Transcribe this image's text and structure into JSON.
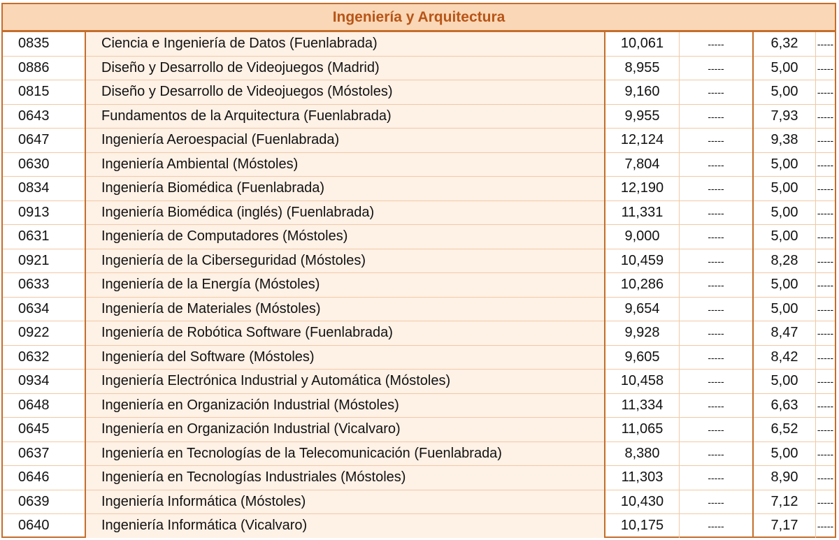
{
  "title": "Ingeniería y Arquitectura",
  "rows": [
    {
      "code": "0835",
      "name": "Ciencia e Ingeniería de Datos (Fuenlabrada)",
      "v1": "10,061",
      "d1": "-----",
      "v2": "6,32",
      "d2": "-----"
    },
    {
      "code": "0886",
      "name": "Diseño y Desarrollo de Videojuegos (Madrid)",
      "v1": "8,955",
      "d1": "-----",
      "v2": "5,00",
      "d2": "-----"
    },
    {
      "code": "0815",
      "name": "Diseño y Desarrollo de Videojuegos (Móstoles)",
      "v1": "9,160",
      "d1": "-----",
      "v2": "5,00",
      "d2": "-----"
    },
    {
      "code": "0643",
      "name": "Fundamentos de la Arquitectura (Fuenlabrada)",
      "v1": "9,955",
      "d1": "-----",
      "v2": "7,93",
      "d2": "-----"
    },
    {
      "code": "0647",
      "name": "Ingeniería Aeroespacial (Fuenlabrada)",
      "v1": "12,124",
      "d1": "-----",
      "v2": "9,38",
      "d2": "-----"
    },
    {
      "code": "0630",
      "name": "Ingeniería Ambiental (Móstoles)",
      "v1": "7,804",
      "d1": "-----",
      "v2": "5,00",
      "d2": "-----"
    },
    {
      "code": "0834",
      "name": "Ingeniería Biomédica (Fuenlabrada)",
      "v1": "12,190",
      "d1": "-----",
      "v2": "5,00",
      "d2": "-----"
    },
    {
      "code": "0913",
      "name": "Ingeniería Biomédica (inglés) (Fuenlabrada)",
      "v1": "11,331",
      "d1": "-----",
      "v2": "5,00",
      "d2": "-----"
    },
    {
      "code": "0631",
      "name": "Ingeniería de Computadores (Móstoles)",
      "v1": "9,000",
      "d1": "-----",
      "v2": "5,00",
      "d2": "-----"
    },
    {
      "code": "0921",
      "name": "Ingeniería de la Ciberseguridad (Móstoles)",
      "v1": "10,459",
      "d1": "-----",
      "v2": "8,28",
      "d2": "-----"
    },
    {
      "code": "0633",
      "name": "Ingeniería de la Energía (Móstoles)",
      "v1": "10,286",
      "d1": "-----",
      "v2": "5,00",
      "d2": "-----"
    },
    {
      "code": "0634",
      "name": "Ingeniería de Materiales (Móstoles)",
      "v1": "9,654",
      "d1": "-----",
      "v2": "5,00",
      "d2": "-----"
    },
    {
      "code": "0922",
      "name": "Ingeniería de Robótica Software (Fuenlabrada)",
      "v1": "9,928",
      "d1": "-----",
      "v2": "8,47",
      "d2": "-----"
    },
    {
      "code": "0632",
      "name": "Ingeniería del Software (Móstoles)",
      "v1": "9,605",
      "d1": "-----",
      "v2": "8,42",
      "d2": "-----"
    },
    {
      "code": "0934",
      "name": "Ingeniería Electrónica Industrial y Automática (Móstoles)",
      "v1": "10,458",
      "d1": "-----",
      "v2": "5,00",
      "d2": "-----"
    },
    {
      "code": "0648",
      "name": "Ingeniería en Organización Industrial (Móstoles)",
      "v1": "11,334",
      "d1": "-----",
      "v2": "6,63",
      "d2": "-----"
    },
    {
      "code": "0645",
      "name": "Ingeniería en Organización Industrial (Vicalvaro)",
      "v1": "11,065",
      "d1": "-----",
      "v2": "6,52",
      "d2": "-----"
    },
    {
      "code": "0637",
      "name": "Ingeniería en Tecnologías de la Telecomunicación (Fuenlabrada)",
      "v1": "8,380",
      "d1": "-----",
      "v2": "5,00",
      "d2": "-----"
    },
    {
      "code": "0646",
      "name": "Ingeniería en Tecnologías Industriales (Móstoles)",
      "v1": "11,303",
      "d1": "-----",
      "v2": "8,90",
      "d2": "-----"
    },
    {
      "code": "0639",
      "name": "Ingeniería Informática (Móstoles)",
      "v1": "10,430",
      "d1": "-----",
      "v2": "7,12",
      "d2": "-----"
    },
    {
      "code": "0640",
      "name": "Ingeniería Informática (Vicalvaro)",
      "v1": "10,175",
      "d1": "-----",
      "v2": "7,17",
      "d2": "-----"
    }
  ]
}
